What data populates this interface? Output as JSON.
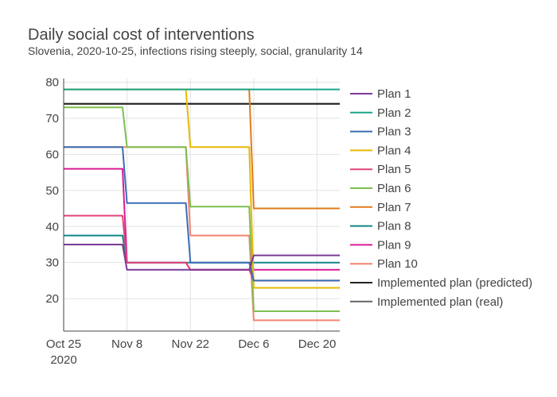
{
  "chart_data": {
    "type": "line",
    "title": "Daily social cost of interventions",
    "subtitle": "Slovenia, 2020-10-25, infections rising steeply, social, granularity 14",
    "xlabel": "",
    "ylabel": "",
    "xlim": [
      "2020-10-25",
      "2020-12-25"
    ],
    "ylim": [
      11,
      81
    ],
    "x_ticks": [
      {
        "date": "2020-10-25",
        "label": "Oct 25",
        "label2": "2020"
      },
      {
        "date": "2020-11-08",
        "label": "Nov 8"
      },
      {
        "date": "2020-11-22",
        "label": "Nov 22"
      },
      {
        "date": "2020-12-06",
        "label": "Dec 6"
      },
      {
        "date": "2020-12-20",
        "label": "Dec 20"
      }
    ],
    "y_ticks": [
      20,
      30,
      40,
      50,
      60,
      70,
      80
    ],
    "grid": true,
    "legend_position": "right",
    "series": [
      {
        "name": "Plan 1",
        "color": "#7b3a96",
        "points": [
          [
            "2020-10-25",
            35
          ],
          [
            "2020-11-07",
            35
          ],
          [
            "2020-11-08",
            28
          ],
          [
            "2020-11-21",
            28
          ],
          [
            "2020-11-22",
            28
          ],
          [
            "2020-12-05",
            28
          ],
          [
            "2020-12-06",
            32
          ],
          [
            "2020-12-25",
            32
          ]
        ]
      },
      {
        "name": "Plan 2",
        "color": "#1aa68b",
        "points": [
          [
            "2020-10-25",
            78
          ],
          [
            "2020-12-25",
            78
          ]
        ]
      },
      {
        "name": "Plan 3",
        "color": "#3b6db5",
        "points": [
          [
            "2020-10-25",
            62
          ],
          [
            "2020-11-07",
            62
          ],
          [
            "2020-11-08",
            46.5
          ],
          [
            "2020-11-21",
            46.5
          ],
          [
            "2020-11-22",
            30
          ],
          [
            "2020-12-05",
            30
          ],
          [
            "2020-12-06",
            25
          ],
          [
            "2020-12-25",
            25
          ]
        ]
      },
      {
        "name": "Plan 4",
        "color": "#e6b800",
        "points": [
          [
            "2020-10-25",
            78
          ],
          [
            "2020-11-21",
            78
          ],
          [
            "2020-11-22",
            62
          ],
          [
            "2020-12-05",
            62
          ],
          [
            "2020-12-06",
            23
          ],
          [
            "2020-12-25",
            23
          ]
        ]
      },
      {
        "name": "Plan 5",
        "color": "#e2437a",
        "points": [
          [
            "2020-10-25",
            43
          ],
          [
            "2020-11-07",
            43
          ],
          [
            "2020-11-08",
            30
          ],
          [
            "2020-11-21",
            30
          ],
          [
            "2020-11-22",
            28
          ],
          [
            "2020-12-05",
            28
          ],
          [
            "2020-12-06",
            25
          ],
          [
            "2020-12-25",
            25
          ]
        ]
      },
      {
        "name": "Plan 6",
        "color": "#7cc04f",
        "points": [
          [
            "2020-10-25",
            73
          ],
          [
            "2020-11-07",
            73
          ],
          [
            "2020-11-08",
            62
          ],
          [
            "2020-11-21",
            62
          ],
          [
            "2020-11-22",
            45.5
          ],
          [
            "2020-12-05",
            45.5
          ],
          [
            "2020-12-06",
            16.5
          ],
          [
            "2020-12-25",
            16.5
          ]
        ]
      },
      {
        "name": "Plan 7",
        "color": "#e07b1c",
        "points": [
          [
            "2020-10-25",
            78
          ],
          [
            "2020-12-05",
            78
          ],
          [
            "2020-12-06",
            45
          ],
          [
            "2020-12-25",
            45
          ]
        ]
      },
      {
        "name": "Plan 8",
        "color": "#12868a",
        "points": [
          [
            "2020-10-25",
            37.5
          ],
          [
            "2020-11-07",
            37.5
          ],
          [
            "2020-11-08",
            30
          ],
          [
            "2020-11-21",
            30
          ],
          [
            "2020-11-22",
            30
          ],
          [
            "2020-12-05",
            30
          ],
          [
            "2020-12-06",
            30
          ],
          [
            "2020-12-25",
            30
          ]
        ]
      },
      {
        "name": "Plan 9",
        "color": "#d81b93",
        "points": [
          [
            "2020-10-25",
            56
          ],
          [
            "2020-11-07",
            56
          ],
          [
            "2020-11-08",
            30
          ],
          [
            "2020-11-21",
            30
          ],
          [
            "2020-11-22",
            28
          ],
          [
            "2020-12-05",
            28
          ],
          [
            "2020-12-06",
            28
          ],
          [
            "2020-12-25",
            28
          ]
        ]
      },
      {
        "name": "Plan 10",
        "color": "#f5826f",
        "points": [
          [
            "2020-10-25",
            62
          ],
          [
            "2020-11-21",
            62
          ],
          [
            "2020-11-22",
            37.5
          ],
          [
            "2020-12-05",
            37.5
          ],
          [
            "2020-12-06",
            14
          ],
          [
            "2020-12-25",
            14
          ]
        ]
      },
      {
        "name": "Implemented plan (predicted)",
        "color": "#222222",
        "points": [
          [
            "2020-10-25",
            74
          ],
          [
            "2020-12-25",
            74
          ]
        ]
      },
      {
        "name": "Implemented plan (real)",
        "color": "#666666",
        "points": [
          [
            "2020-10-25",
            74
          ],
          [
            "2020-12-25",
            74
          ]
        ]
      }
    ]
  }
}
